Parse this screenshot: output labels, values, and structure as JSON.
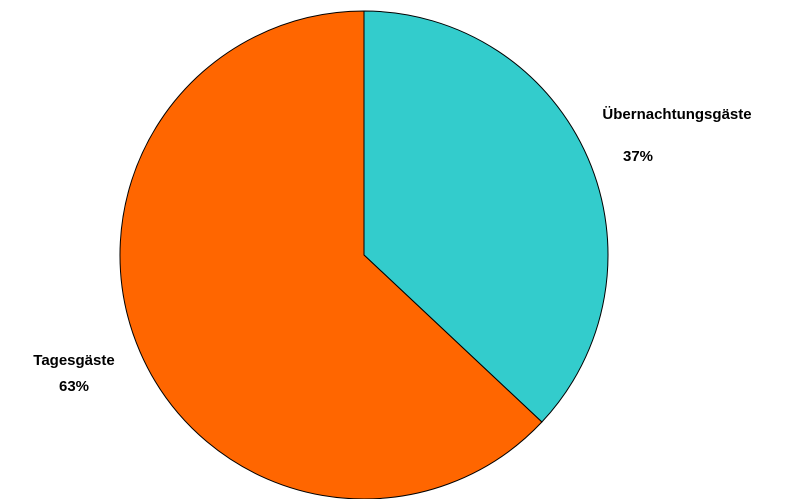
{
  "chart_data": {
    "type": "pie",
    "title": "",
    "categories": [
      "Übernachtungsgäste",
      "Tagesgäste"
    ],
    "values": [
      37,
      63
    ],
    "value_labels": [
      "37%",
      "63%"
    ],
    "unit": "%",
    "start_angle_deg": 0,
    "direction": "clockwise",
    "colors": [
      "#33cccc",
      "#ff6600"
    ],
    "outline_color": "#000000",
    "legend": "none"
  }
}
